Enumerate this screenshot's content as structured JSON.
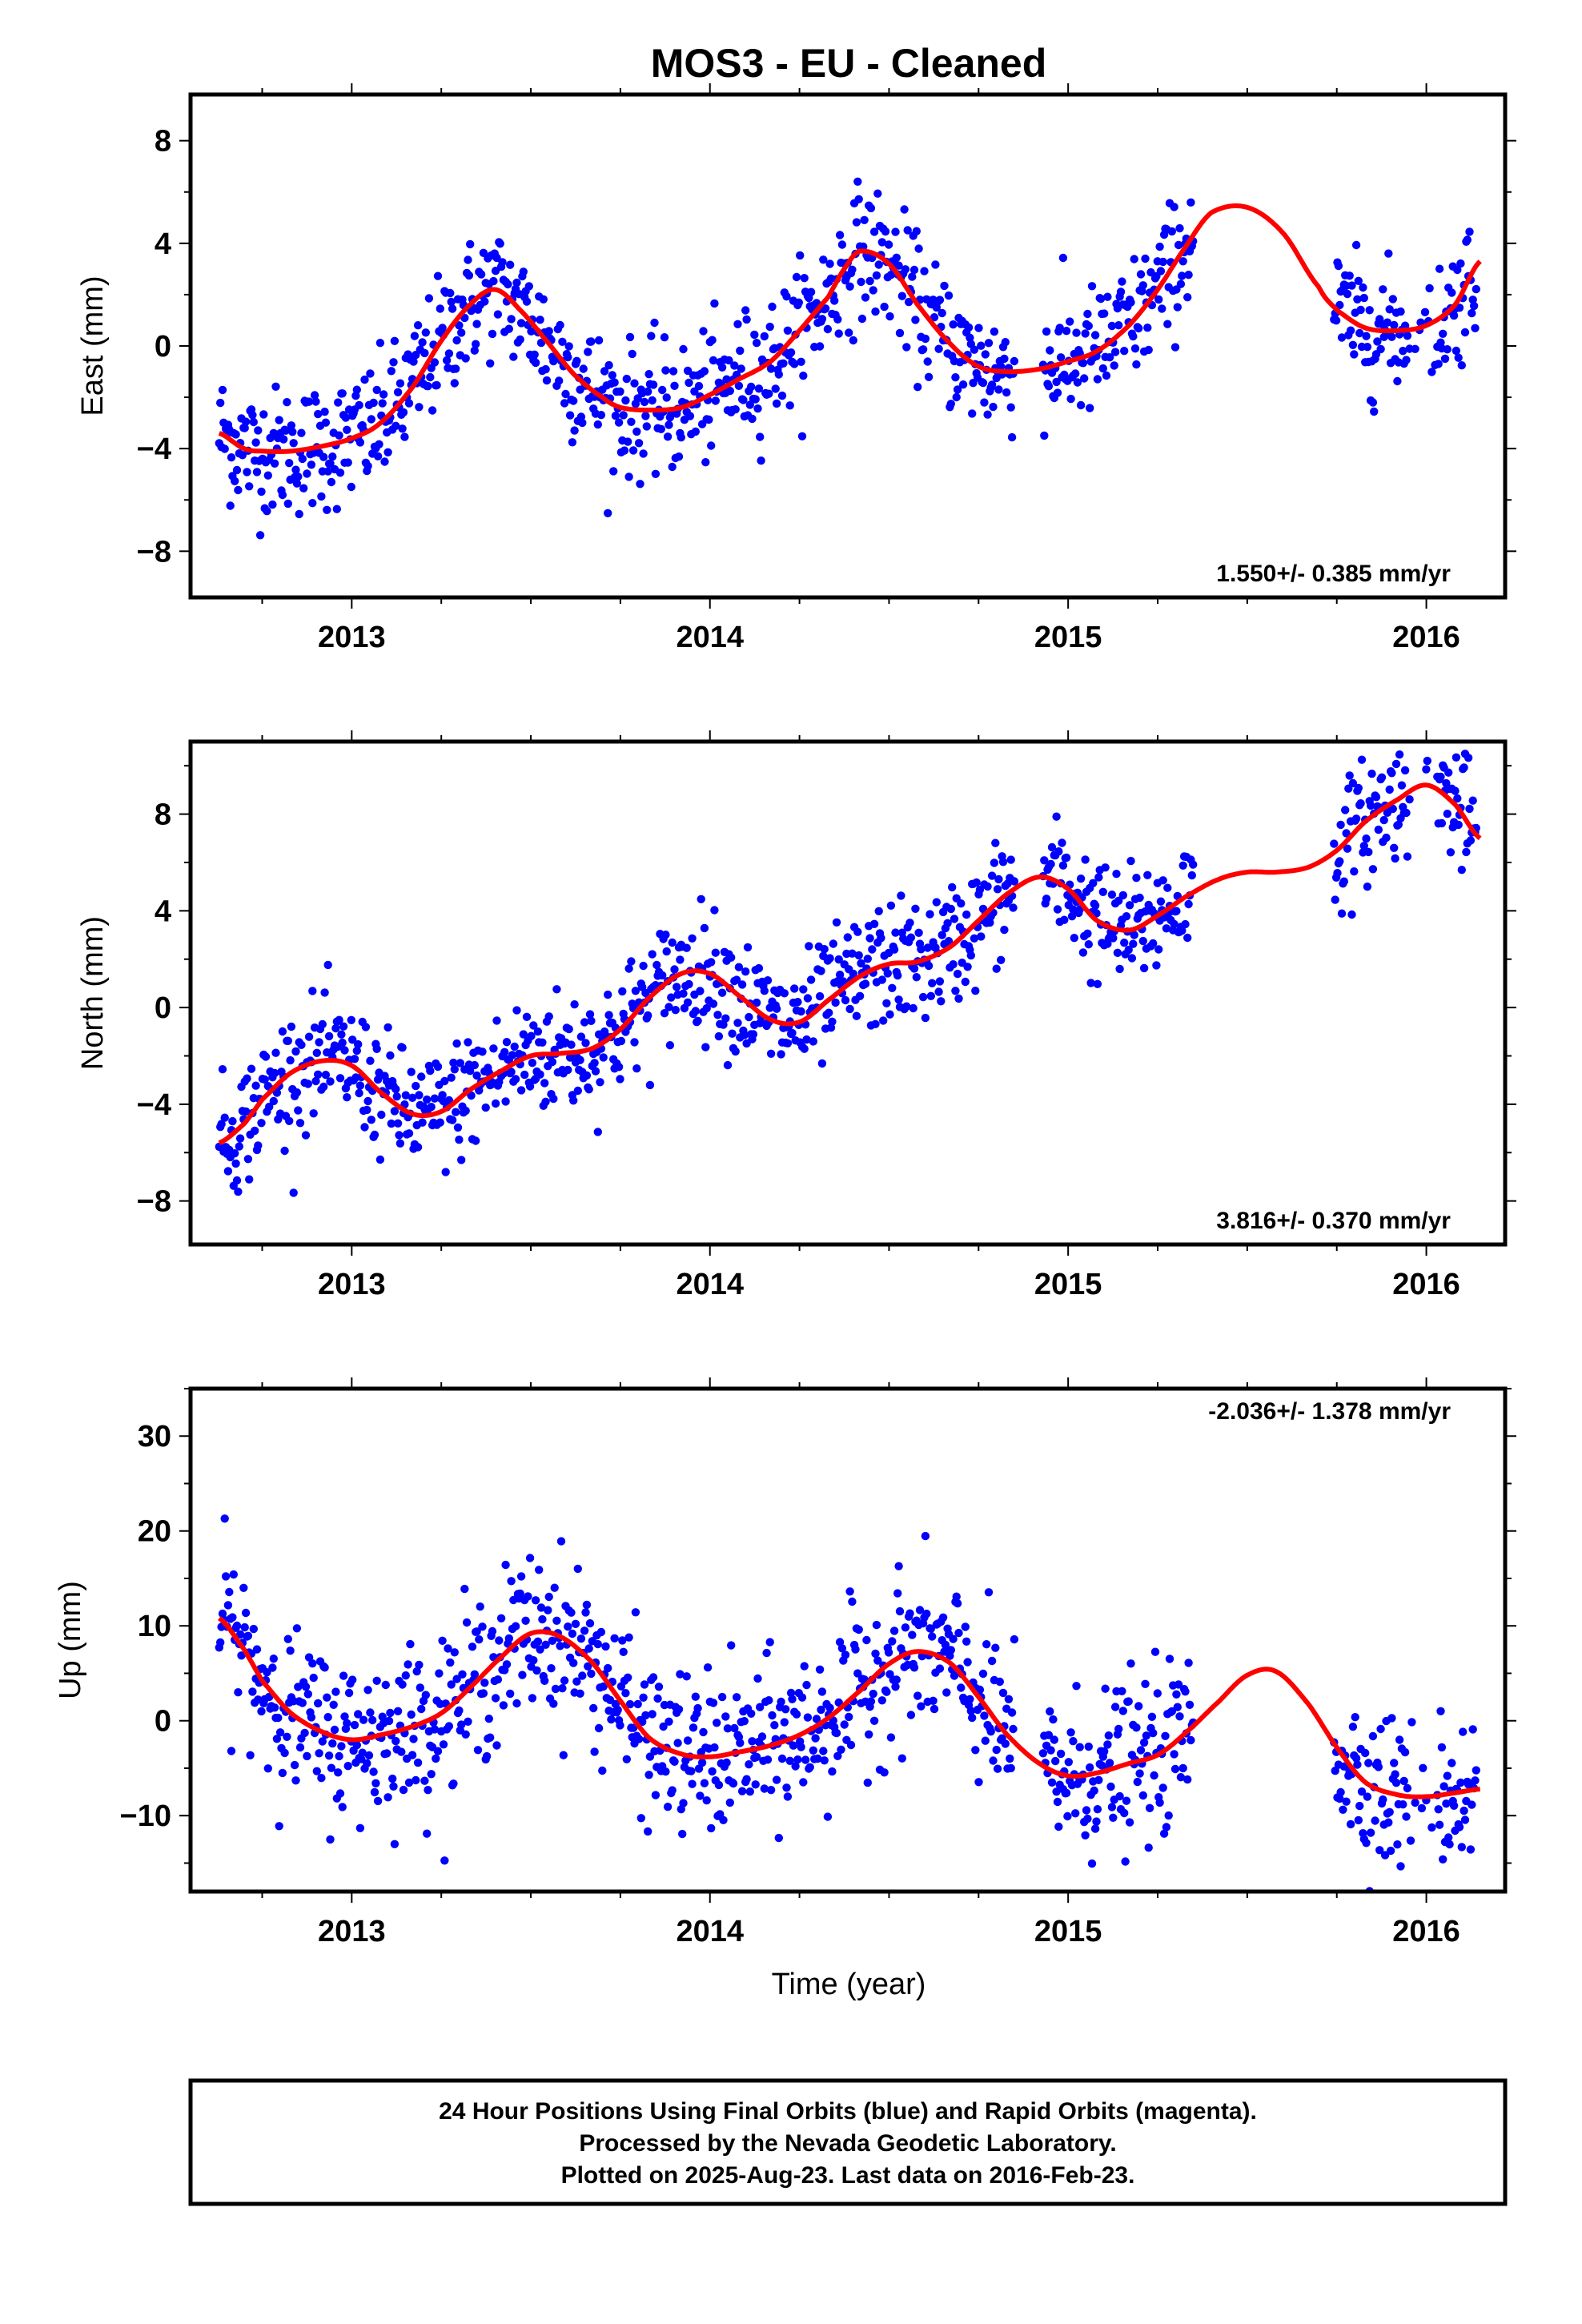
{
  "title": "MOS3  - EU - Cleaned",
  "xlabel": "Time (year)",
  "footer": {
    "line1": "24 Hour Positions Using Final Orbits (blue) and Rapid Orbits (magenta).",
    "line2": "Processed by the Nevada Geodetic Laboratory.",
    "line3": "Plotted on 2025-Aug-23. Last data on 2016-Feb-23."
  },
  "colors": {
    "points": "#0000ff",
    "fit": "#ff0000",
    "frame": "#000000"
  },
  "chart_data": [
    {
      "type": "scatter",
      "ylabel": "East (mm)",
      "rate_text": "1.550+/- 0.385 mm/yr",
      "xlim": [
        2012.55,
        2016.22
      ],
      "ylim": [
        -9.8,
        9.8
      ],
      "xticks": [
        2013,
        2014,
        2015,
        2016
      ],
      "yticks": [
        -8,
        -4,
        0,
        4,
        8
      ],
      "yticklabels": [
        "−8",
        "−4",
        "0",
        "4",
        "8"
      ],
      "series": [
        {
          "x": [
            2012.63,
            2012.7,
            2012.75,
            2012.83,
            2012.92,
            2013.0,
            2013.08,
            2013.17,
            2013.25,
            2013.33,
            2013.4,
            2013.47,
            2013.55,
            2013.62,
            2013.7,
            2013.75,
            2013.83,
            2013.92,
            2014.0,
            2014.08,
            2014.17,
            2014.25,
            2014.33,
            2014.38,
            2014.42,
            2014.5,
            2014.58,
            2014.67,
            2014.75,
            2014.83,
            2014.92,
            2015.0,
            2015.08,
            2015.17,
            2015.25,
            2015.33,
            2015.4,
            2015.5,
            2015.6,
            2015.7,
            2015.75,
            2015.83,
            2015.92,
            2016.0,
            2016.08,
            2016.15
          ],
          "y": [
            -3.4,
            -4.0,
            -4.1,
            -4.1,
            -3.9,
            -3.6,
            -3.0,
            -1.6,
            0.2,
            1.6,
            2.2,
            1.4,
            0.1,
            -1.1,
            -2.0,
            -2.4,
            -2.5,
            -2.4,
            -1.9,
            -1.3,
            -0.6,
            0.6,
            1.9,
            3.1,
            3.7,
            3.2,
            1.6,
            0.1,
            -0.8,
            -1.0,
            -0.9,
            -0.6,
            -0.2,
            0.8,
            2.2,
            3.9,
            5.2,
            5.4,
            4.4,
            2.3,
            1.4,
            0.7,
            0.6,
            0.8,
            1.6,
            3.3
          ]
        }
      ]
    },
    {
      "type": "scatter",
      "ylabel": "North (mm)",
      "rate_text": "3.816+/- 0.370 mm/yr",
      "xlim": [
        2012.55,
        2016.22
      ],
      "ylim": [
        -9.8,
        11.0
      ],
      "xticks": [
        2013,
        2014,
        2015,
        2016
      ],
      "yticks": [
        -8,
        -4,
        0,
        4,
        8
      ],
      "yticklabels": [
        "−8",
        "−4",
        "0",
        "4",
        "8"
      ],
      "series": [
        {
          "x": [
            2012.63,
            2012.7,
            2012.75,
            2012.83,
            2012.92,
            2013.0,
            2013.08,
            2013.17,
            2013.25,
            2013.33,
            2013.42,
            2013.5,
            2013.58,
            2013.67,
            2013.75,
            2013.83,
            2013.92,
            2014.0,
            2014.08,
            2014.17,
            2014.25,
            2014.33,
            2014.42,
            2014.5,
            2014.58,
            2014.67,
            2014.75,
            2014.83,
            2014.92,
            2015.0,
            2015.08,
            2015.17,
            2015.25,
            2015.33,
            2015.42,
            2015.5,
            2015.58,
            2015.67,
            2015.75,
            2015.83,
            2015.92,
            2016.0,
            2016.08,
            2016.15
          ],
          "y": [
            -5.6,
            -4.8,
            -3.8,
            -2.7,
            -2.2,
            -2.4,
            -3.5,
            -4.4,
            -4.3,
            -3.4,
            -2.6,
            -2.0,
            -1.9,
            -1.7,
            -0.9,
            0.4,
            1.4,
            1.4,
            0.5,
            -0.5,
            -0.6,
            0.3,
            1.3,
            1.8,
            1.9,
            2.5,
            3.6,
            4.7,
            5.4,
            4.9,
            3.6,
            3.2,
            3.8,
            4.6,
            5.3,
            5.6,
            5.6,
            5.8,
            6.5,
            7.7,
            8.6,
            9.2,
            8.4,
            7.0
          ]
        }
      ]
    },
    {
      "type": "scatter",
      "ylabel": "Up (mm)",
      "rate_text": "-2.036+/- 1.378 mm/yr",
      "xlim": [
        2012.55,
        2016.22
      ],
      "ylim": [
        -18.0,
        35.0
      ],
      "xticks": [
        2013,
        2014,
        2015,
        2016
      ],
      "yticks": [
        -10,
        0,
        10,
        20,
        30
      ],
      "yticklabels": [
        "−10",
        "0",
        "10",
        "20",
        "30"
      ],
      "series": [
        {
          "x": [
            2012.63,
            2012.7,
            2012.75,
            2012.83,
            2012.92,
            2013.0,
            2013.08,
            2013.17,
            2013.25,
            2013.33,
            2013.42,
            2013.5,
            2013.58,
            2013.67,
            2013.75,
            2013.83,
            2013.92,
            2014.0,
            2014.08,
            2014.17,
            2014.25,
            2014.33,
            2014.42,
            2014.5,
            2014.58,
            2014.67,
            2014.75,
            2014.83,
            2014.92,
            2015.0,
            2015.08,
            2015.17,
            2015.25,
            2015.33,
            2015.42,
            2015.5,
            2015.58,
            2015.67,
            2015.75,
            2015.83,
            2015.92,
            2016.0,
            2016.08,
            2016.15
          ],
          "y": [
            10.8,
            7.5,
            4.2,
            0.8,
            -1.2,
            -2.0,
            -1.5,
            -0.6,
            0.8,
            3.5,
            6.8,
            9.2,
            8.9,
            6.2,
            2.1,
            -1.8,
            -3.5,
            -3.8,
            -3.3,
            -2.6,
            -1.5,
            0.3,
            3.2,
            6.0,
            7.3,
            6.1,
            2.5,
            -1.5,
            -4.5,
            -5.8,
            -5.5,
            -4.5,
            -3.6,
            -1.2,
            2.0,
            4.8,
            5.2,
            1.8,
            -2.8,
            -6.5,
            -7.8,
            -8.0,
            -7.6,
            -7.2
          ]
        }
      ]
    }
  ]
}
